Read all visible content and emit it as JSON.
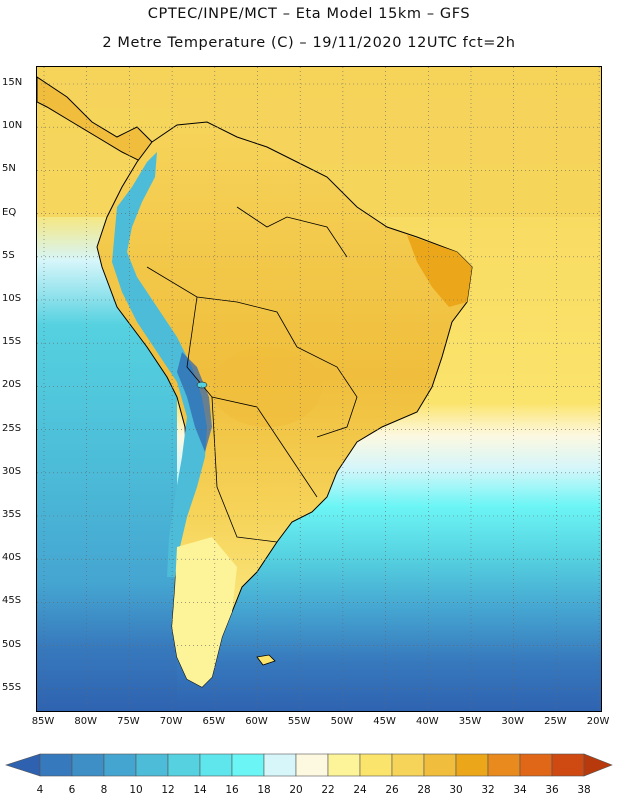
{
  "title_line1": "CPTEC/INPE/MCT –  Eta Model 15km – GFS",
  "title_line2": "2 Metre Temperature (C) – 19/11/2020 12UTC fct=2h",
  "lat_labels": [
    "15N",
    "10N",
    "5N",
    "EQ",
    "5S",
    "10S",
    "15S",
    "20S",
    "25S",
    "30S",
    "35S",
    "40S",
    "45S",
    "50S",
    "55S"
  ],
  "lon_labels": [
    "85W",
    "80W",
    "75W",
    "70W",
    "65W",
    "60W",
    "55W",
    "50W",
    "45W",
    "40W",
    "35W",
    "30W",
    "25W",
    "20W"
  ],
  "colorbar": {
    "labels": [
      "4",
      "6",
      "8",
      "10",
      "12",
      "14",
      "16",
      "18",
      "20",
      "22",
      "24",
      "26",
      "28",
      "30",
      "32",
      "34",
      "36",
      "38"
    ],
    "colors": [
      "#2e62b0",
      "#3779bd",
      "#3d8fc6",
      "#45a5d1",
      "#4cbcd8",
      "#55d1e0",
      "#5fe6ec",
      "#6cf5f5",
      "#d6f6fa",
      "#fdf8e0",
      "#fdf398",
      "#fbe46c",
      "#f6d45a",
      "#f0be3c",
      "#eca61a",
      "#e88a1e",
      "#e06618",
      "#cf4a12",
      "#b83a0c"
    ]
  },
  "map": {
    "ocean_south_deep": "#2e62b0",
    "ocean_south_mid": "#3d8fc6",
    "ocean_cool": "#55d1e0",
    "ocean_cool_light": "#6cf5f5",
    "ocean_transition": "#d6f6fa",
    "ocean_warm": "#f6d45a",
    "ocean_warm_light": "#fbe46c",
    "land_warm": "#f6d45a",
    "land_hot": "#eca61a",
    "land_mild": "#fdf398",
    "andes_cold": "#4cbcd8"
  }
}
